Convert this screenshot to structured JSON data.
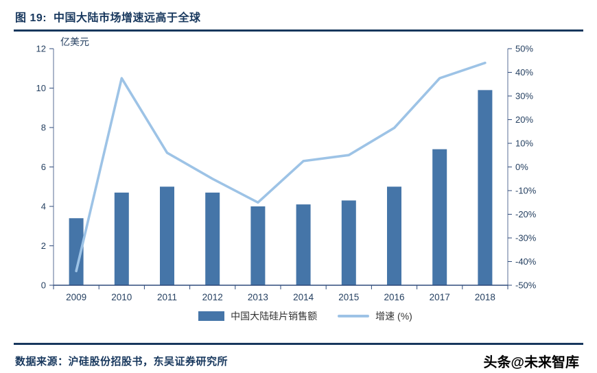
{
  "header": {
    "title": "图 19:  中国大陆市场增速远高于全球"
  },
  "chart_data": {
    "type": "combo",
    "unit_label": "亿美元",
    "categories": [
      "2009",
      "2010",
      "2011",
      "2012",
      "2013",
      "2014",
      "2015",
      "2016",
      "2017",
      "2018"
    ],
    "series": [
      {
        "name": "中国大陆硅片销售额",
        "type": "bar",
        "axis": "left",
        "color": "#4575a8",
        "values": [
          3.4,
          4.7,
          5.0,
          4.7,
          4.0,
          4.1,
          4.3,
          5.0,
          6.9,
          9.9
        ]
      },
      {
        "name": "增速 (%)",
        "type": "line",
        "axis": "right",
        "color": "#9dc3e6",
        "values": [
          -44,
          37.5,
          6,
          -5,
          -15,
          2.5,
          5,
          16.5,
          37.5,
          44
        ]
      }
    ],
    "left_axis": {
      "min": 0,
      "max": 12,
      "ticks": [
        0,
        2,
        4,
        6,
        8,
        10,
        12
      ]
    },
    "right_axis": {
      "min": -50,
      "max": 50,
      "ticks": [
        "-50%",
        "-40%",
        "-30%",
        "-20%",
        "-10%",
        "0%",
        "10%",
        "20%",
        "30%",
        "40%",
        "50%"
      ]
    },
    "legend_position": "bottom",
    "grid": "off",
    "axis_color": "#2e4a7a"
  },
  "footer": {
    "source": "数据来源：沪硅股份招股书，东吴证券研究所",
    "watermark": "头条@未来智库"
  }
}
